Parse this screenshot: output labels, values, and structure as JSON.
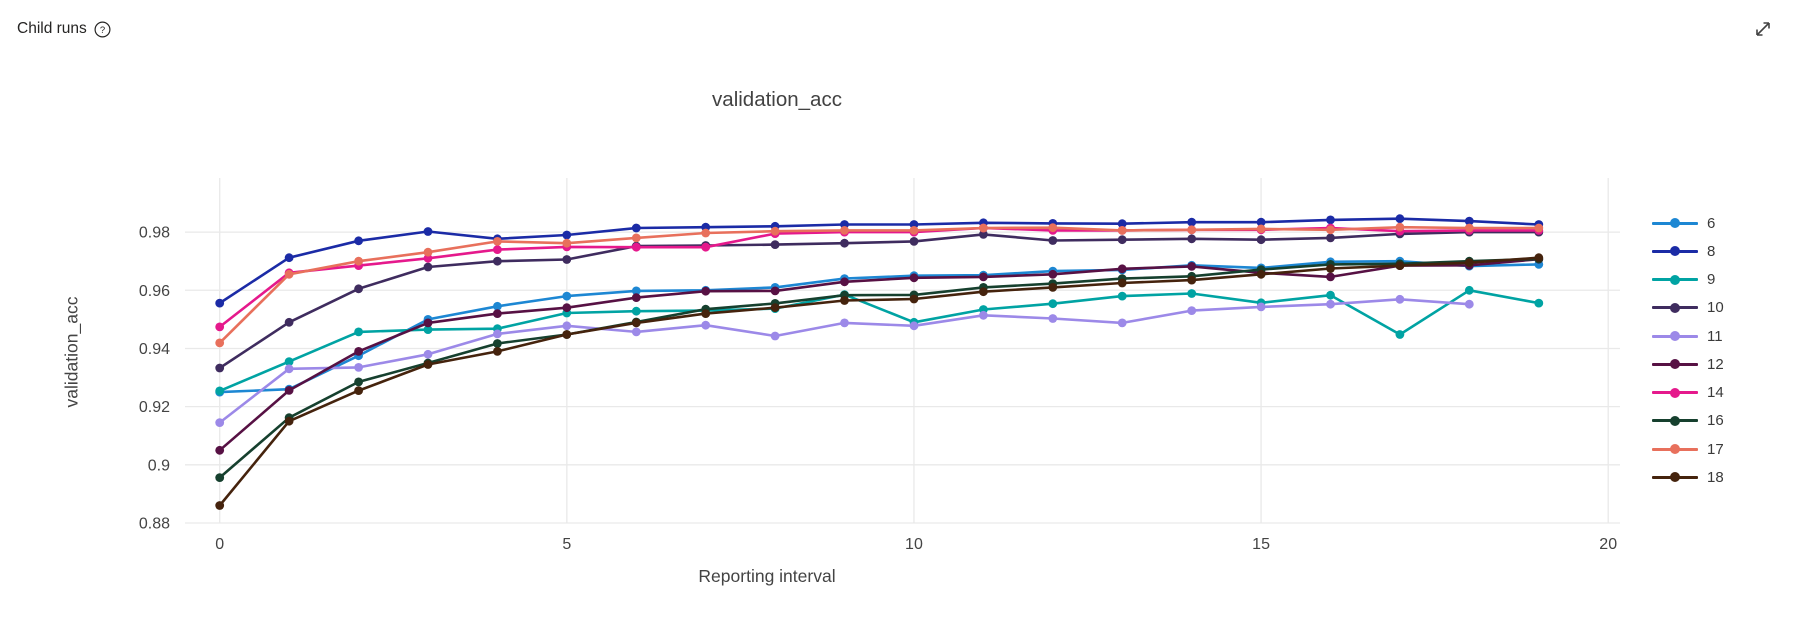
{
  "header": {
    "title": "Child runs",
    "help_icon": "question-mark-circle",
    "expand_icon": "diagonal-expand-arrow"
  },
  "chart_data": {
    "type": "line",
    "title": "validation_acc",
    "xlabel": "Reporting interval",
    "ylabel": "validation_acc",
    "xlim": [
      -0.5,
      20.17
    ],
    "ylim": [
      0.88,
      0.9986
    ],
    "x_ticks": [
      0,
      5,
      10,
      15,
      20
    ],
    "x_tick_labels": [
      "0",
      "5",
      "10",
      "15",
      "20"
    ],
    "y_ticks": [
      0.88,
      0.9,
      0.92,
      0.94,
      0.96,
      0.98
    ],
    "y_tick_labels": [
      "0.88",
      "0.9",
      "0.92",
      "0.94",
      "0.96",
      "0.98"
    ],
    "grid": true,
    "legend_position": "right",
    "marker": "circle",
    "series": [
      {
        "name": "6",
        "color": "#1d87d3",
        "values": [
          0.925,
          0.926,
          0.9375,
          0.95,
          0.9545,
          0.958,
          0.9598,
          0.96,
          0.961,
          0.964,
          0.965,
          0.9652,
          0.9666,
          0.967,
          0.9686,
          0.9677,
          0.9698,
          0.97,
          0.9683,
          0.9689
        ]
      },
      {
        "name": "8",
        "color": "#1b2ba6",
        "values": [
          0.9556,
          0.9712,
          0.977,
          0.9802,
          0.9777,
          0.979,
          0.9814,
          0.9817,
          0.982,
          0.9826,
          0.9826,
          0.9832,
          0.983,
          0.9829,
          0.9834,
          0.9834,
          0.9842,
          0.9846,
          0.9838,
          0.9826
        ]
      },
      {
        "name": "9",
        "color": "#00a3a3",
        "values": [
          0.9254,
          0.9355,
          0.9457,
          0.9465,
          0.9468,
          0.9522,
          0.9528,
          0.953,
          0.9537,
          0.9585,
          0.949,
          0.9534,
          0.9554,
          0.958,
          0.9589,
          0.9557,
          0.9583,
          0.9448,
          0.96,
          0.9556
        ]
      },
      {
        "name": "10",
        "color": "#3f2c5f",
        "values": [
          0.9333,
          0.949,
          0.9605,
          0.968,
          0.97,
          0.9706,
          0.9752,
          0.9754,
          0.9757,
          0.9762,
          0.9768,
          0.9792,
          0.9771,
          0.9774,
          0.9777,
          0.9774,
          0.978,
          0.9794,
          0.98,
          0.98
        ]
      },
      {
        "name": "11",
        "color": "#9c89e8",
        "values": [
          0.9145,
          0.933,
          0.9335,
          0.938,
          0.945,
          0.9478,
          0.9457,
          0.948,
          0.9443,
          0.9488,
          0.9478,
          0.9514,
          0.9503,
          0.9488,
          0.953,
          0.9543,
          0.9552,
          0.9569,
          0.9552
        ]
      },
      {
        "name": "12",
        "color": "#571144",
        "values": [
          0.905,
          0.9256,
          0.939,
          0.9488,
          0.952,
          0.954,
          0.9575,
          0.9597,
          0.9598,
          0.9629,
          0.9643,
          0.9646,
          0.9655,
          0.9674,
          0.9682,
          0.966,
          0.9646,
          0.9685,
          0.9686,
          0.9707
        ]
      },
      {
        "name": "14",
        "color": "#e5198c",
        "values": [
          0.9474,
          0.966,
          0.9685,
          0.971,
          0.974,
          0.9749,
          0.9748,
          0.9748,
          0.9795,
          0.98,
          0.98,
          0.9814,
          0.9806,
          0.9806,
          0.9808,
          0.9808,
          0.9814,
          0.9803,
          0.9806,
          0.9806
        ]
      },
      {
        "name": "16",
        "color": "#16402e",
        "values": [
          0.8956,
          0.9162,
          0.9285,
          0.935,
          0.9417,
          0.9448,
          0.9491,
          0.9535,
          0.9555,
          0.9583,
          0.9584,
          0.961,
          0.9623,
          0.964,
          0.9648,
          0.9671,
          0.9689,
          0.9691,
          0.97,
          0.9708
        ]
      },
      {
        "name": "17",
        "color": "#e8705c",
        "values": [
          0.9419,
          0.9655,
          0.97,
          0.9731,
          0.9768,
          0.9762,
          0.978,
          0.9797,
          0.9803,
          0.9806,
          0.9806,
          0.9814,
          0.9815,
          0.9806,
          0.9808,
          0.9811,
          0.9808,
          0.9817,
          0.9814,
          0.9814
        ]
      },
      {
        "name": "18",
        "color": "#45230d",
        "values": [
          0.886,
          0.915,
          0.9255,
          0.9345,
          0.939,
          0.9448,
          0.9488,
          0.952,
          0.954,
          0.9565,
          0.957,
          0.9595,
          0.961,
          0.9625,
          0.9635,
          0.9655,
          0.9675,
          0.9685,
          0.9695,
          0.9712
        ]
      }
    ]
  }
}
